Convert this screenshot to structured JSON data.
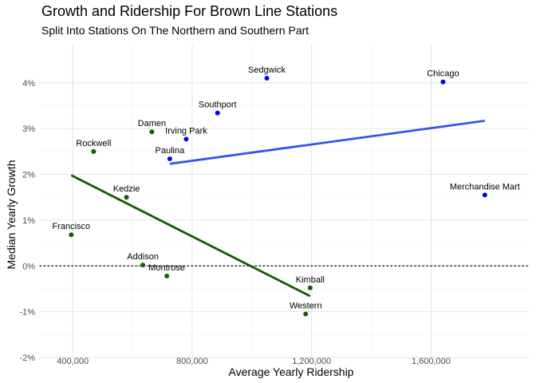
{
  "chart_data": {
    "type": "scatter",
    "title": "Growth and Ridership For Brown Line Stations",
    "subtitle": "Split Into Stations On The Northern and Southern Part",
    "xlabel": "Average Yearly Ridership",
    "ylabel": "Median Yearly Growth",
    "xlim": [
      290000,
      1930000
    ],
    "ylim": [
      -2,
      4.85
    ],
    "xticks": [
      400000,
      800000,
      1200000,
      1600000
    ],
    "xtick_labels": [
      "400,000",
      "800,000",
      "1,200,000",
      "1,600,000"
    ],
    "yticks": [
      -2,
      -1,
      0,
      1,
      2,
      3,
      4
    ],
    "ytick_labels": [
      "-2%",
      "-1%",
      "0%",
      "1%",
      "2%",
      "3%",
      "4%"
    ],
    "grid": true,
    "reference_line": {
      "y": 0,
      "style": "dotted",
      "color": "#333333"
    },
    "series": [
      {
        "color": "#0000ff",
        "points": [
          {
            "label": "Sedgwick",
            "x": 1050000,
            "y": 4.1
          },
          {
            "label": "Chicago",
            "x": 1640000,
            "y": 4.02
          },
          {
            "label": "Southport",
            "x": 885000,
            "y": 3.34
          },
          {
            "label": "Irving Park",
            "x": 780000,
            "y": 2.77
          },
          {
            "label": "Paulina",
            "x": 725000,
            "y": 2.34
          },
          {
            "label": "Merchandise Mart",
            "x": 1780000,
            "y": 1.55
          }
        ],
        "trend": {
          "color": "#3355ee",
          "x": [
            725000,
            1780000
          ],
          "y": [
            2.23,
            3.17
          ]
        }
      },
      {
        "color": "#1a5c0a",
        "points": [
          {
            "label": "Damen",
            "x": 665000,
            "y": 2.93
          },
          {
            "label": "Rockwell",
            "x": 470000,
            "y": 2.5
          },
          {
            "label": "Kedzie",
            "x": 580000,
            "y": 1.5
          },
          {
            "label": "Francisco",
            "x": 395000,
            "y": 0.68
          },
          {
            "label": "Addison",
            "x": 635000,
            "y": 0.02
          },
          {
            "label": "Montrose",
            "x": 715000,
            "y": -0.22
          },
          {
            "label": "Kimball",
            "x": 1195000,
            "y": -0.48
          },
          {
            "label": "Western",
            "x": 1180000,
            "y": -1.05
          }
        ],
        "trend": {
          "color": "#145a00",
          "x": [
            395000,
            1195000
          ],
          "y": [
            1.98,
            -0.66
          ]
        }
      }
    ]
  }
}
